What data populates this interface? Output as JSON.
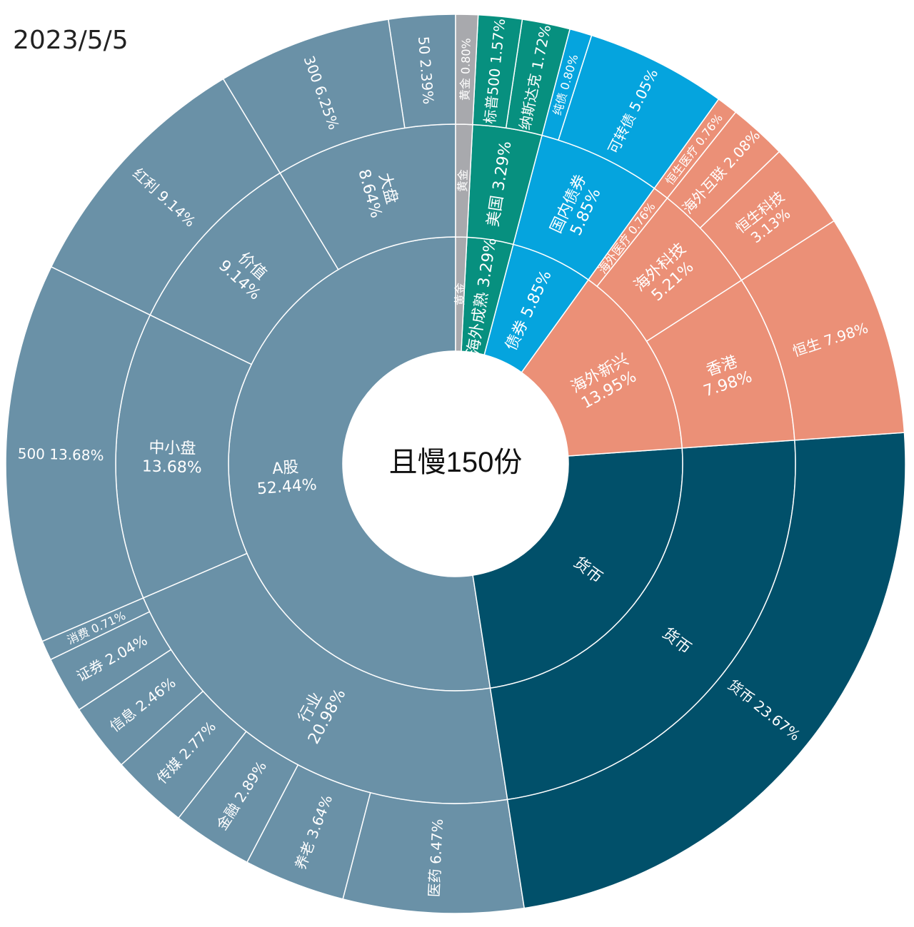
{
  "date": "2023/5/5",
  "chart_data": {
    "type": "sunburst",
    "center_label": "且慢150份",
    "colors": {
      "A股": "#6a91a7",
      "货币": "#01506a",
      "海外新兴": "#eb9077",
      "债券": "#05a4de",
      "海外成熟": "#07907f",
      "黄金": "#a8a9ad"
    },
    "inner": [
      {
        "name": "A股",
        "value": 52.44,
        "label": [
          "A股",
          "52.44%"
        ]
      },
      {
        "name": "货币",
        "value": 23.67,
        "label": [
          "货币"
        ]
      },
      {
        "name": "海外新兴",
        "value": 13.95,
        "label": [
          "海外新兴",
          "13.95%"
        ]
      },
      {
        "name": "债券",
        "value": 5.85,
        "label": [
          "债券 5.85%"
        ]
      },
      {
        "name": "海外成熟",
        "value": 3.29,
        "label": [
          "海外成熟 3.29%"
        ]
      },
      {
        "name": "黄金",
        "value": 0.8,
        "label": [
          "黄金"
        ]
      }
    ],
    "middle": [
      {
        "parent": "A股",
        "name": "大盘",
        "value": 8.64,
        "label": [
          "大盘",
          "8.64%"
        ]
      },
      {
        "parent": "A股",
        "name": "价值",
        "value": 9.14,
        "label": [
          "价值",
          "9.14%"
        ]
      },
      {
        "parent": "A股",
        "name": "中小盘",
        "value": 13.68,
        "label": [
          "中小盘",
          "13.68%"
        ]
      },
      {
        "parent": "A股",
        "name": "行业",
        "value": 20.98,
        "label": [
          "行业",
          "20.98%"
        ]
      },
      {
        "parent": "货币",
        "name": "货币",
        "value": 23.67,
        "label": [
          "货币"
        ]
      },
      {
        "parent": "海外新兴",
        "name": "香港",
        "value": 7.98,
        "label": [
          "香港",
          "7.98%"
        ]
      },
      {
        "parent": "海外新兴",
        "name": "海外科技",
        "value": 5.21,
        "label": [
          "海外科技",
          "5.21%"
        ]
      },
      {
        "parent": "海外新兴",
        "name": "海外医疗",
        "value": 0.76,
        "label": [
          "海外医疗 0.76%"
        ]
      },
      {
        "parent": "债券",
        "name": "国内债券",
        "value": 5.85,
        "label": [
          "国内债券",
          "5.85%"
        ]
      },
      {
        "parent": "海外成熟",
        "name": "美国",
        "value": 3.29,
        "label": [
          "美国 3.29%"
        ]
      },
      {
        "parent": "黄金",
        "name": "黄金",
        "value": 0.8,
        "label": [
          "黄金"
        ]
      }
    ],
    "outer": [
      {
        "parent": "大盘",
        "name": "50",
        "value": 2.39,
        "label": "50 2.39%"
      },
      {
        "parent": "大盘",
        "name": "300",
        "value": 6.25,
        "label": "300 6.25%"
      },
      {
        "parent": "价值",
        "name": "红利",
        "value": 9.14,
        "label": "红利 9.14%"
      },
      {
        "parent": "中小盘",
        "name": "500",
        "value": 13.68,
        "label": "500 13.68%"
      },
      {
        "parent": "行业",
        "name": "消费",
        "value": 0.71,
        "label": "消费 0.71%"
      },
      {
        "parent": "行业",
        "name": "证券",
        "value": 2.04,
        "label": "证券 2.04%"
      },
      {
        "parent": "行业",
        "name": "信息",
        "value": 2.46,
        "label": "信息 2.46%"
      },
      {
        "parent": "行业",
        "name": "传媒",
        "value": 2.77,
        "label": "传媒 2.77%"
      },
      {
        "parent": "行业",
        "name": "金融",
        "value": 2.89,
        "label": "金融 2.89%"
      },
      {
        "parent": "行业",
        "name": "养老",
        "value": 3.64,
        "label": "养老 3.64%"
      },
      {
        "parent": "行业",
        "name": "医药",
        "value": 6.47,
        "label": "医药 6.47%"
      },
      {
        "parent": "货币",
        "name": "货币",
        "value": 23.67,
        "label": "货币 23.67%"
      },
      {
        "parent": "香港",
        "name": "恒生",
        "value": 7.98,
        "label": "恒生 7.98%"
      },
      {
        "parent": "海外科技",
        "name": "恒生科技",
        "value": 3.13,
        "label": "恒生科技\n3.13%"
      },
      {
        "parent": "海外科技",
        "name": "海外互联",
        "value": 2.08,
        "label": "海外互联 2.08%"
      },
      {
        "parent": "海外医疗",
        "name": "恒生医疗",
        "value": 0.76,
        "label": "恒生医疗 0.76%"
      },
      {
        "parent": "国内债券",
        "name": "可转债",
        "value": 5.05,
        "label": "可转债 5.05%"
      },
      {
        "parent": "国内债券",
        "name": "纯债",
        "value": 0.8,
        "label": "纯债 0.80%"
      },
      {
        "parent": "美国",
        "name": "纳斯达克",
        "value": 1.72,
        "label": "纳斯达克 1.72%"
      },
      {
        "parent": "美国",
        "name": "标普500",
        "value": 1.57,
        "label": "标普500 1.57%"
      },
      {
        "parent": "黄金",
        "name": "黄金",
        "value": 0.8,
        "label": "黄金 0.80%"
      }
    ]
  }
}
